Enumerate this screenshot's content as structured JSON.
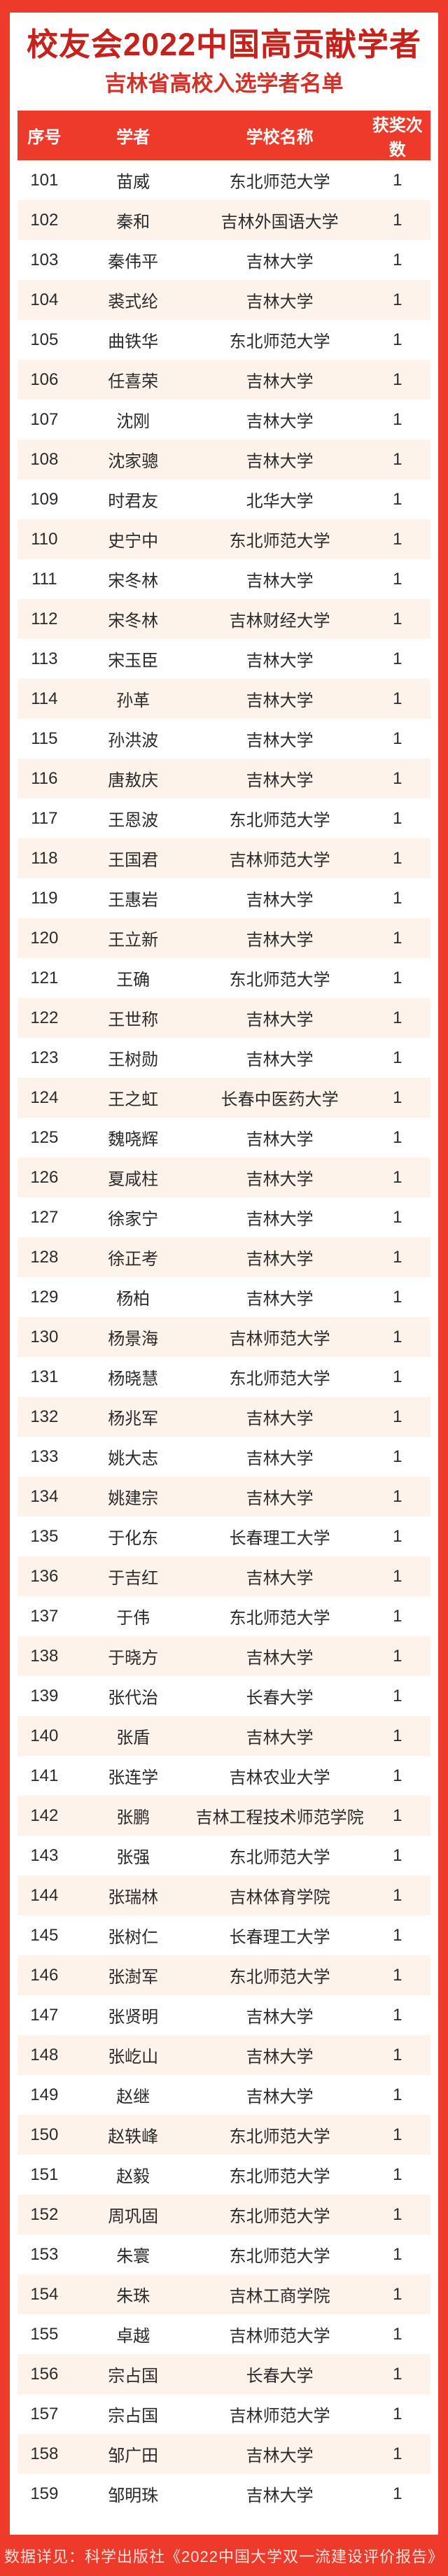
{
  "colors": {
    "frame_red": "#ee3a2b",
    "table_header_red": "#ee3a2b",
    "title_red": "#c5221c",
    "subtitle_red": "#d23227",
    "row_alt_cream": "#fdf3eb",
    "row_text": "#2a2a2a",
    "header_text": "#ffffff",
    "footer_text": "#ffe3df"
  },
  "header": {
    "title": "校友会2022中国高贡献学者",
    "subtitle": "吉林省高校入选学者名单"
  },
  "table": {
    "columns": [
      "序号",
      "学者",
      "学校名称",
      "获奖次数"
    ],
    "rows": [
      [
        "101",
        "苗威",
        "东北师范大学",
        "1"
      ],
      [
        "102",
        "秦和",
        "吉林外国语大学",
        "1"
      ],
      [
        "103",
        "秦伟平",
        "吉林大学",
        "1"
      ],
      [
        "104",
        "裘式纶",
        "吉林大学",
        "1"
      ],
      [
        "105",
        "曲铁华",
        "东北师范大学",
        "1"
      ],
      [
        "106",
        "任喜荣",
        "吉林大学",
        "1"
      ],
      [
        "107",
        "沈刚",
        "吉林大学",
        "1"
      ],
      [
        "108",
        "沈家骢",
        "吉林大学",
        "1"
      ],
      [
        "109",
        "时君友",
        "北华大学",
        "1"
      ],
      [
        "110",
        "史宁中",
        "东北师范大学",
        "1"
      ],
      [
        "111",
        "宋冬林",
        "吉林大学",
        "1"
      ],
      [
        "112",
        "宋冬林",
        "吉林财经大学",
        "1"
      ],
      [
        "113",
        "宋玉臣",
        "吉林大学",
        "1"
      ],
      [
        "114",
        "孙革",
        "吉林大学",
        "1"
      ],
      [
        "115",
        "孙洪波",
        "吉林大学",
        "1"
      ],
      [
        "116",
        "唐敖庆",
        "吉林大学",
        "1"
      ],
      [
        "117",
        "王恩波",
        "东北师范大学",
        "1"
      ],
      [
        "118",
        "王国君",
        "吉林师范大学",
        "1"
      ],
      [
        "119",
        "王惠岩",
        "吉林大学",
        "1"
      ],
      [
        "120",
        "王立新",
        "吉林大学",
        "1"
      ],
      [
        "121",
        "王确",
        "东北师范大学",
        "1"
      ],
      [
        "122",
        "王世称",
        "吉林大学",
        "1"
      ],
      [
        "123",
        "王树勋",
        "吉林大学",
        "1"
      ],
      [
        "124",
        "王之虹",
        "长春中医药大学",
        "1"
      ],
      [
        "125",
        "魏哓辉",
        "吉林大学",
        "1"
      ],
      [
        "126",
        "夏咸柱",
        "吉林大学",
        "1"
      ],
      [
        "127",
        "徐家宁",
        "吉林大学",
        "1"
      ],
      [
        "128",
        "徐正考",
        "吉林大学",
        "1"
      ],
      [
        "129",
        "杨柏",
        "吉林大学",
        "1"
      ],
      [
        "130",
        "杨景海",
        "吉林师范大学",
        "1"
      ],
      [
        "131",
        "杨晓慧",
        "东北师范大学",
        "1"
      ],
      [
        "132",
        "杨兆军",
        "吉林大学",
        "1"
      ],
      [
        "133",
        "姚大志",
        "吉林大学",
        "1"
      ],
      [
        "134",
        "姚建宗",
        "吉林大学",
        "1"
      ],
      [
        "135",
        "于化东",
        "长春理工大学",
        "1"
      ],
      [
        "136",
        "于吉红",
        "吉林大学",
        "1"
      ],
      [
        "137",
        "于伟",
        "东北师范大学",
        "1"
      ],
      [
        "138",
        "于晓方",
        "吉林大学",
        "1"
      ],
      [
        "139",
        "张代治",
        "长春大学",
        "1"
      ],
      [
        "140",
        "张盾",
        "吉林大学",
        "1"
      ],
      [
        "141",
        "张连学",
        "吉林农业大学",
        "1"
      ],
      [
        "142",
        "张鹏",
        "吉林工程技术师范学院",
        "1"
      ],
      [
        "143",
        "张强",
        "东北师范大学",
        "1"
      ],
      [
        "144",
        "张瑞林",
        "吉林体育学院",
        "1"
      ],
      [
        "145",
        "张树仁",
        "长春理工大学",
        "1"
      ],
      [
        "146",
        "张澍军",
        "东北师范大学",
        "1"
      ],
      [
        "147",
        "张贤明",
        "吉林大学",
        "1"
      ],
      [
        "148",
        "张屹山",
        "吉林大学",
        "1"
      ],
      [
        "149",
        "赵继",
        "吉林大学",
        "1"
      ],
      [
        "150",
        "赵轶峰",
        "东北师范大学",
        "1"
      ],
      [
        "151",
        "赵毅",
        "东北师范大学",
        "1"
      ],
      [
        "152",
        "周巩固",
        "东北师范大学",
        "1"
      ],
      [
        "153",
        "朱寰",
        "东北师范大学",
        "1"
      ],
      [
        "154",
        "朱珠",
        "吉林工商学院",
        "1"
      ],
      [
        "155",
        "卓越",
        "吉林师范大学",
        "1"
      ],
      [
        "156",
        "宗占国",
        "长春大学",
        "1"
      ],
      [
        "157",
        "宗占国",
        "吉林师范大学",
        "1"
      ],
      [
        "158",
        "邹广田",
        "吉林大学",
        "1"
      ],
      [
        "159",
        "邹明珠",
        "吉林大学",
        "1"
      ]
    ]
  },
  "footer": {
    "note": "数据详见：科学出版社《2022中国大学双一流建设评价报告》"
  }
}
